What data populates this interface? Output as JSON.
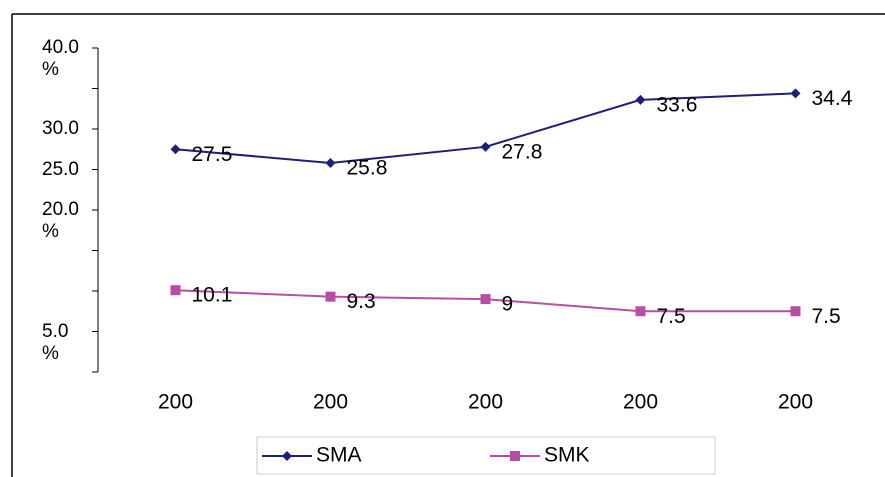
{
  "chart_data": {
    "type": "line",
    "categories": [
      "200",
      "200",
      "200",
      "200",
      "200"
    ],
    "series": [
      {
        "name": "SMA",
        "color": "#1f1f7a",
        "marker": "diamond",
        "values": [
          27.5,
          25.8,
          27.8,
          33.6,
          34.4
        ]
      },
      {
        "name": "SMK",
        "color": "#b94ca5",
        "marker": "square",
        "values": [
          10.1,
          9.3,
          9.0,
          7.5,
          7.5
        ]
      }
    ],
    "ylim": [
      0,
      40
    ],
    "yticks": [
      {
        "value": 0,
        "label": null
      },
      {
        "value": 5,
        "label": "5.0 %"
      },
      {
        "value": 10,
        "label": null
      },
      {
        "value": 15,
        "label": null
      },
      {
        "value": 20,
        "label": "20.0 %"
      },
      {
        "value": 25,
        "label": "25.0"
      },
      {
        "value": 30,
        "label": "30.0"
      },
      {
        "value": 35,
        "label": null
      },
      {
        "value": 40,
        "label": "40.0 %"
      }
    ],
    "legend": "bottom"
  }
}
